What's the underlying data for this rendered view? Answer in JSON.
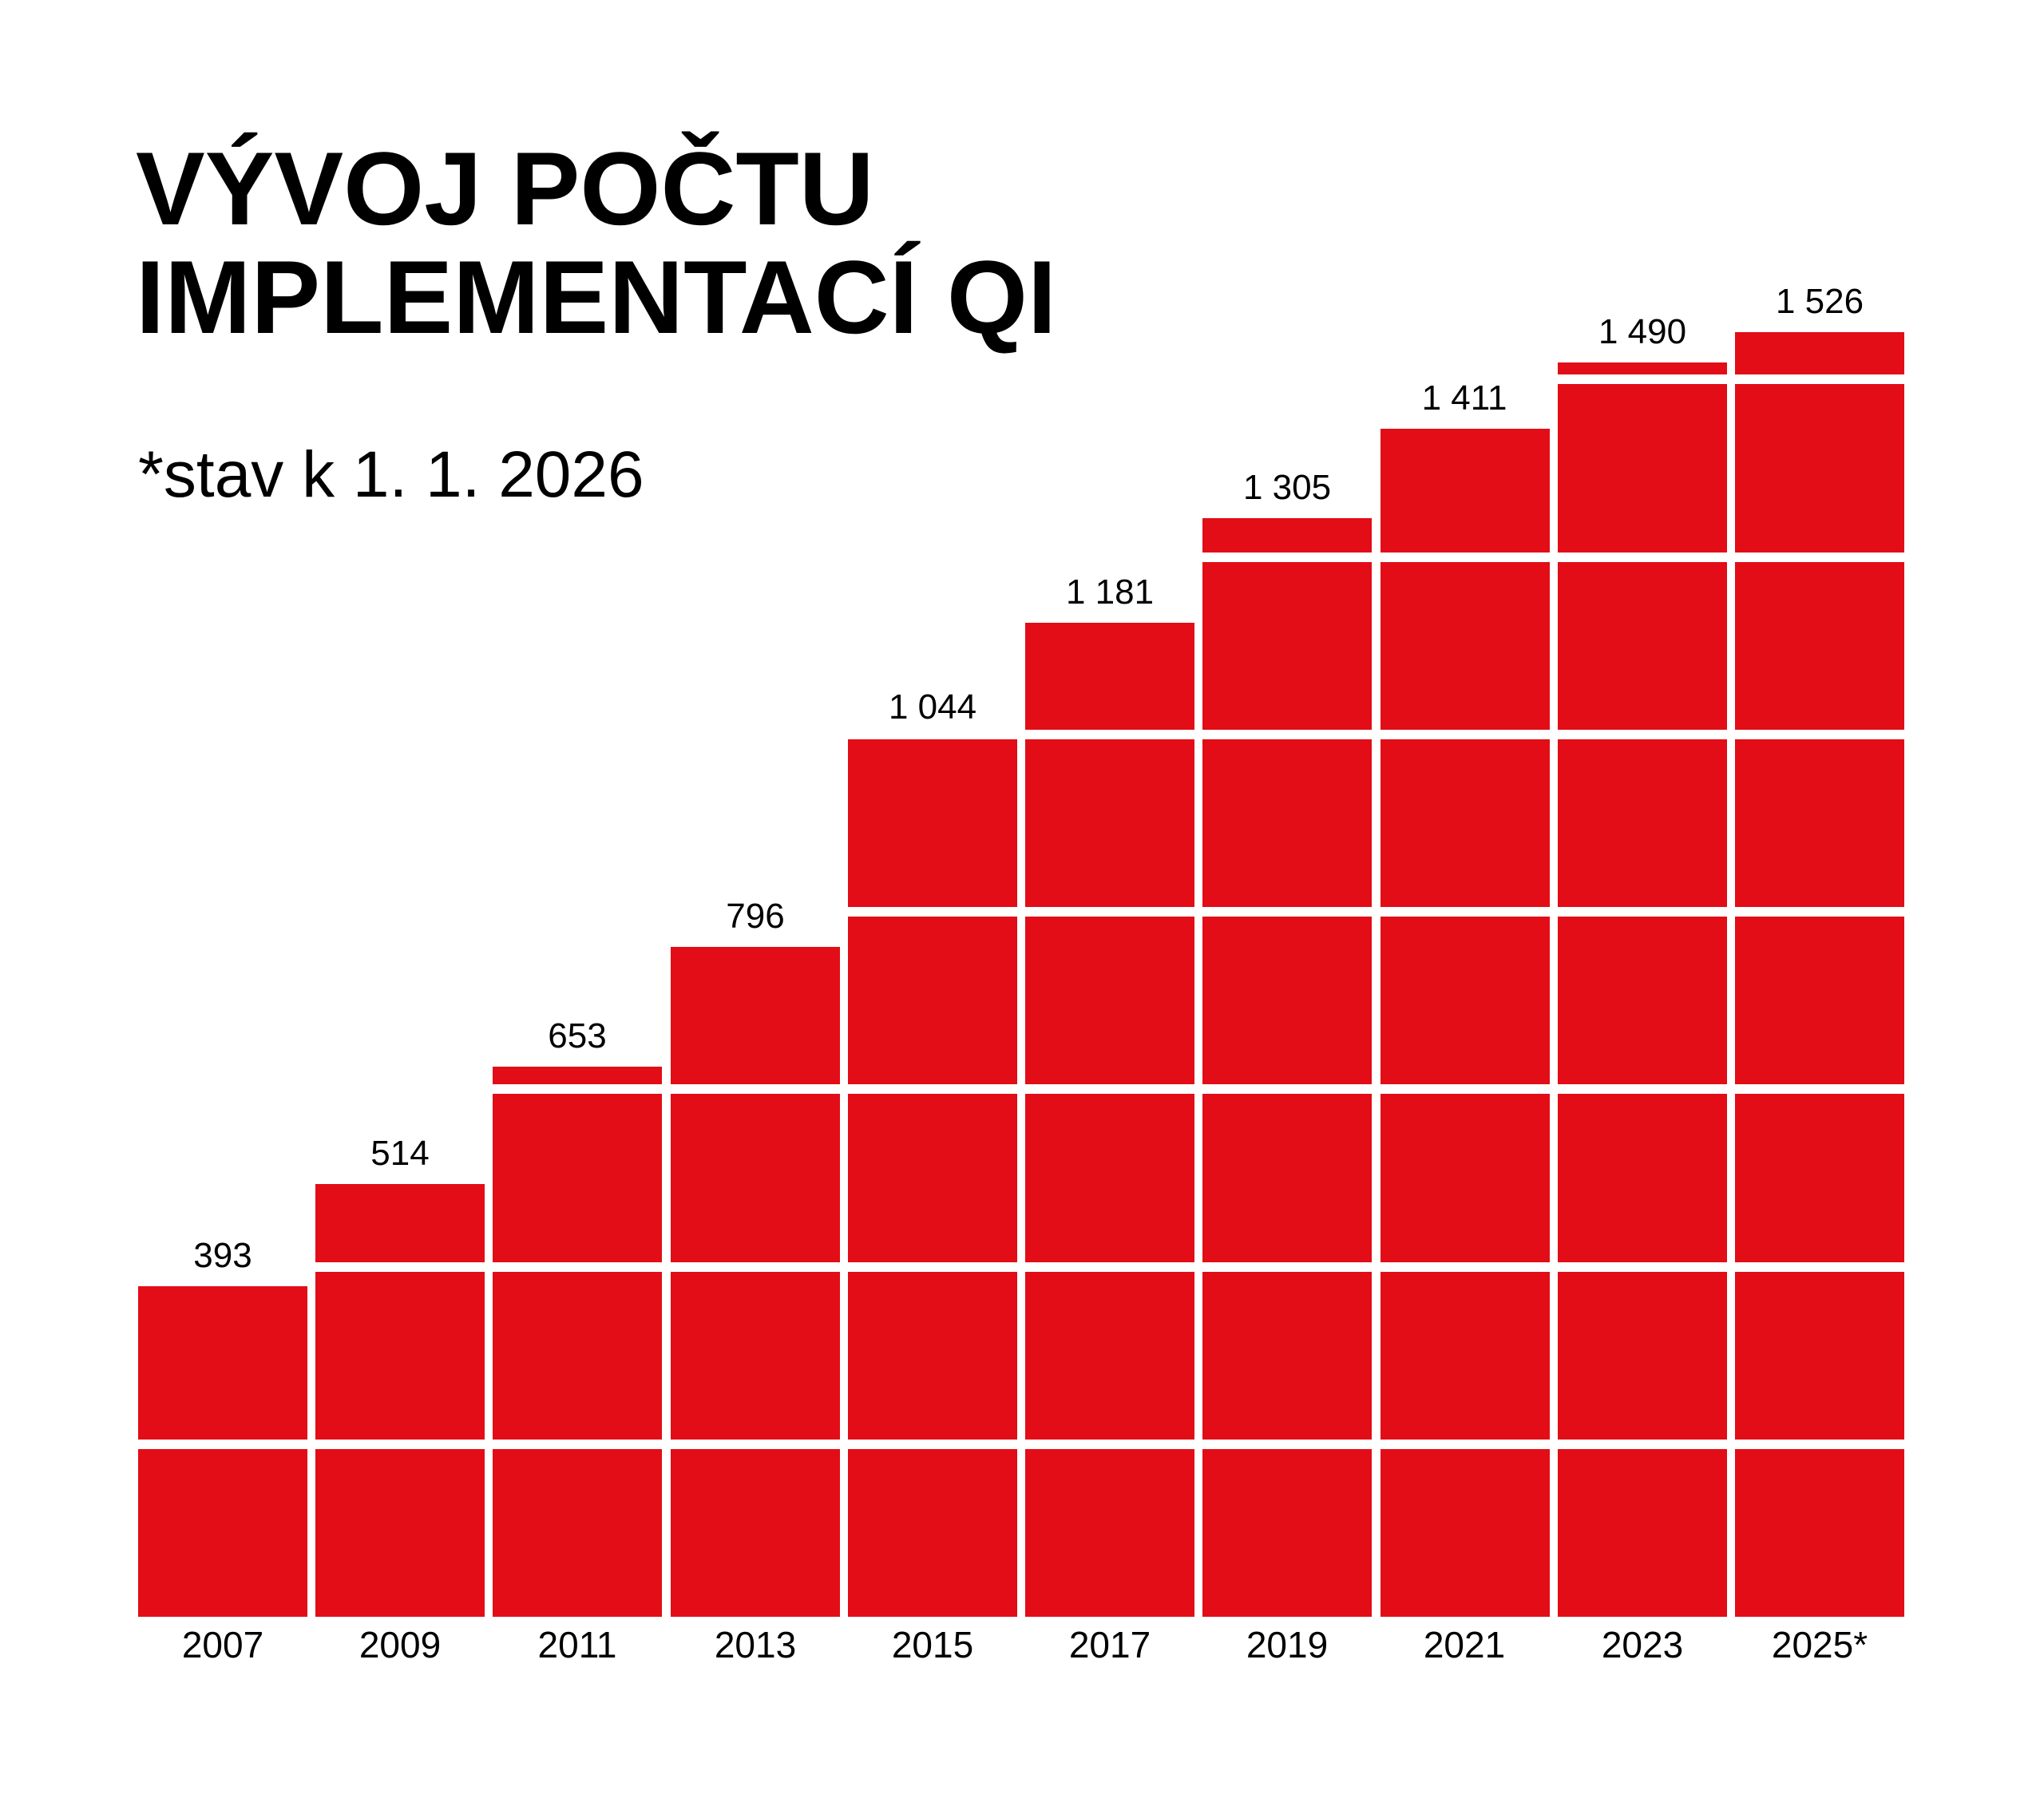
{
  "title": {
    "line1": "VÝVOJ POČTU",
    "line2": "IMPLEMENTACÍ QI"
  },
  "subtitle": "*stav k 1. 1. 2026",
  "colors": {
    "bar": "#e20d16",
    "text": "#000000",
    "background": "#ffffff"
  },
  "chart_data": {
    "type": "bar",
    "title": "VÝVOJ POČTU IMPLEMENTACÍ QI",
    "subtitle": "*stav k 1. 1. 2026",
    "categories": [
      "2007",
      "2009",
      "2011",
      "2013",
      "2015",
      "2017",
      "2019",
      "2021",
      "2023",
      "2025*"
    ],
    "values": [
      393,
      514,
      653,
      796,
      1044,
      1181,
      1305,
      1411,
      1490,
      1526
    ],
    "value_labels": [
      "393",
      "514",
      "653",
      "796",
      "1 044",
      "1 181",
      "1 305",
      "1 411",
      "1 490",
      "1 526"
    ],
    "xlabel": "",
    "ylabel": "",
    "ylim": [
      0,
      1920
    ],
    "grid": "decorative white horizontal bands segmenting bars into square tiles",
    "legend": "none",
    "bar_color": "#e20d16"
  }
}
